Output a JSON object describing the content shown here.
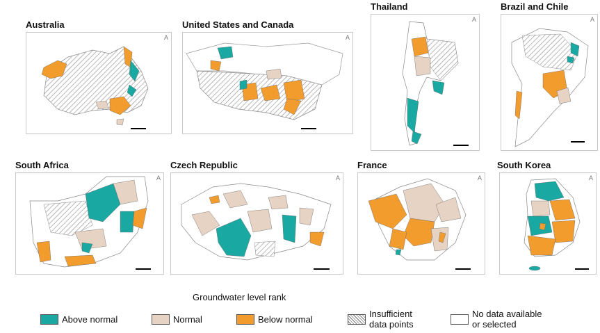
{
  "colors": {
    "above_normal": "#1aa8a2",
    "normal": "#e6d3c4",
    "below_normal": "#f29c2e",
    "insufficient": "#cfcfcf",
    "no_data": "#ffffff"
  },
  "panels": [
    {
      "key": "australia",
      "title": "Australia",
      "north": "A"
    },
    {
      "key": "us_canada",
      "title": "United States and Canada",
      "north": "A"
    },
    {
      "key": "thailand",
      "title": "Thailand",
      "north": "A"
    },
    {
      "key": "brazil_chile",
      "title": "Brazil and Chile",
      "north": "A"
    },
    {
      "key": "south_africa",
      "title": "South Africa",
      "north": "A"
    },
    {
      "key": "czech",
      "title": "Czech Republic",
      "north": "A"
    },
    {
      "key": "france",
      "title": "France",
      "north": "A"
    },
    {
      "key": "south_korea",
      "title": "South Korea",
      "north": "A"
    }
  ],
  "legend": {
    "title": "Groundwater level rank",
    "items": [
      {
        "key": "above_normal",
        "label": "Above normal",
        "icon": "teal-swatch"
      },
      {
        "key": "normal",
        "label": "Normal",
        "icon": "beige-swatch"
      },
      {
        "key": "below_normal",
        "label": "Below normal",
        "icon": "orange-swatch"
      },
      {
        "key": "insufficient",
        "label_line1": "Insufficient",
        "label_line2": "data points",
        "icon": "hatched-swatch"
      },
      {
        "key": "no_data",
        "label_line1": "No data available",
        "label_line2": "or selected",
        "icon": "empty-swatch"
      }
    ]
  }
}
